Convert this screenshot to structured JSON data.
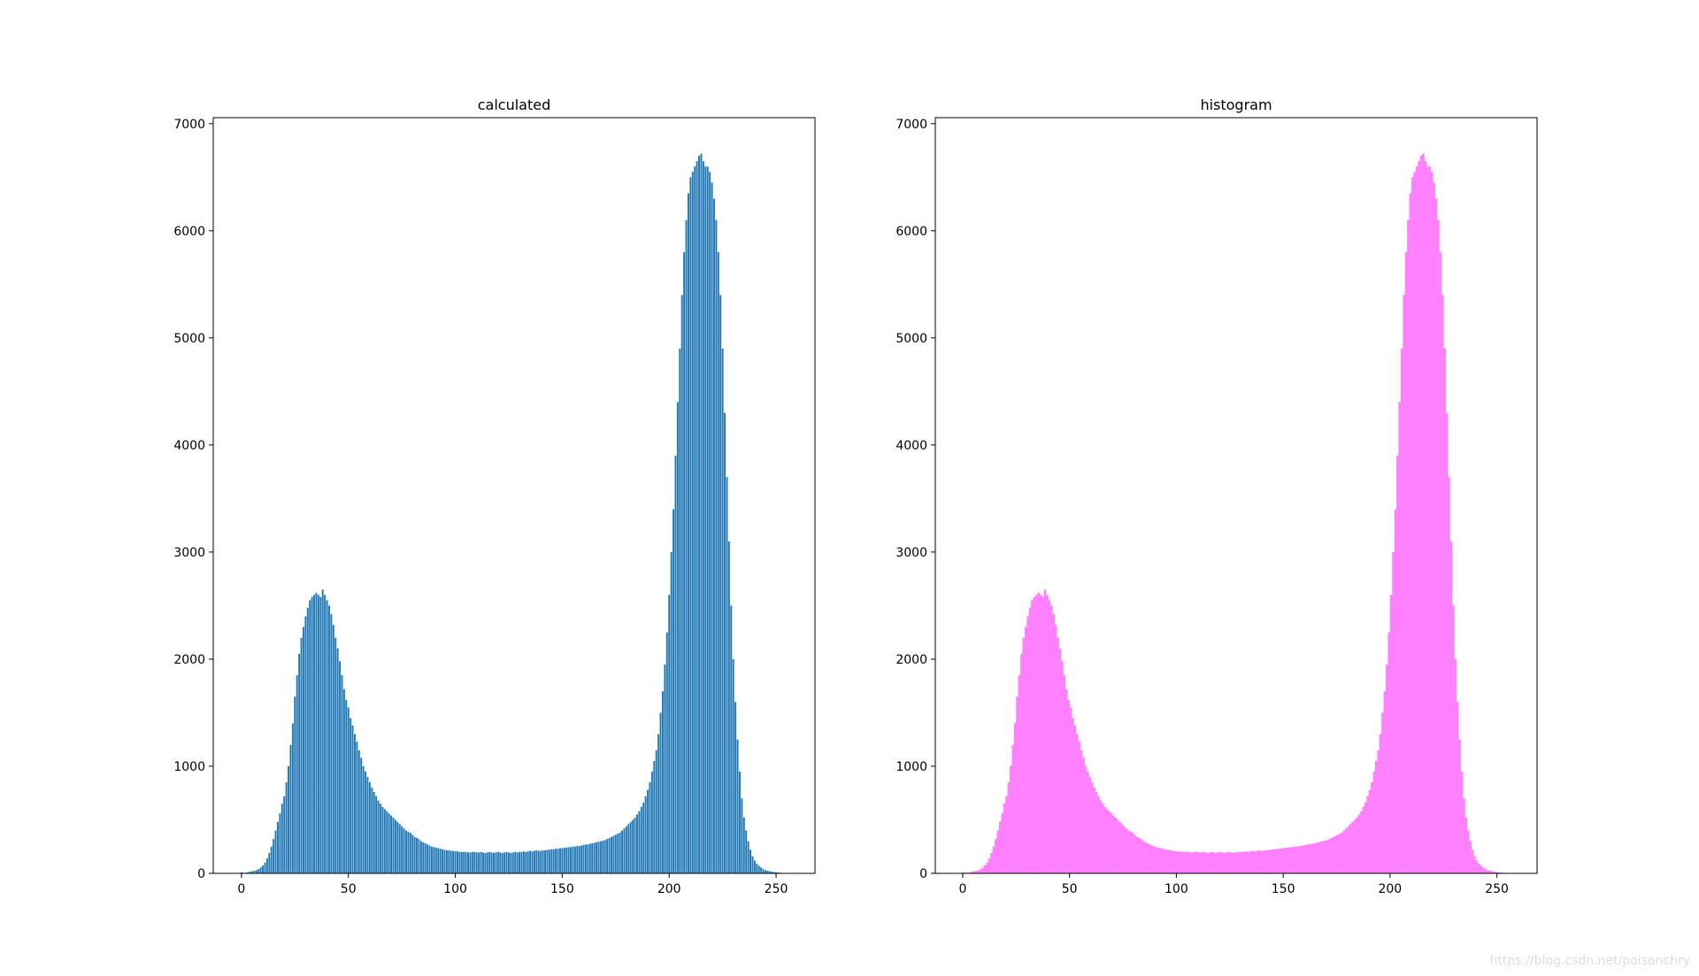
{
  "chart_data": [
    {
      "type": "bar",
      "title": "calculated",
      "color": "#1f77b4",
      "bar_width": 0.8,
      "x": [
        0,
        1,
        2,
        3,
        4,
        5,
        6,
        7,
        8,
        9,
        10,
        11,
        12,
        13,
        14,
        15,
        16,
        17,
        18,
        19,
        20,
        21,
        22,
        23,
        24,
        25,
        26,
        27,
        28,
        29,
        30,
        31,
        32,
        33,
        34,
        35,
        36,
        37,
        38,
        39,
        40,
        41,
        42,
        43,
        44,
        45,
        46,
        47,
        48,
        49,
        50,
        51,
        52,
        53,
        54,
        55,
        56,
        57,
        58,
        59,
        60,
        61,
        62,
        63,
        64,
        65,
        66,
        67,
        68,
        69,
        70,
        71,
        72,
        73,
        74,
        75,
        76,
        77,
        78,
        79,
        80,
        81,
        82,
        83,
        84,
        85,
        86,
        87,
        88,
        89,
        90,
        91,
        92,
        93,
        94,
        95,
        96,
        97,
        98,
        99,
        100,
        101,
        102,
        103,
        104,
        105,
        106,
        107,
        108,
        109,
        110,
        111,
        112,
        113,
        114,
        115,
        116,
        117,
        118,
        119,
        120,
        121,
        122,
        123,
        124,
        125,
        126,
        127,
        128,
        129,
        130,
        131,
        132,
        133,
        134,
        135,
        136,
        137,
        138,
        139,
        140,
        141,
        142,
        143,
        144,
        145,
        146,
        147,
        148,
        149,
        150,
        151,
        152,
        153,
        154,
        155,
        156,
        157,
        158,
        159,
        160,
        161,
        162,
        163,
        164,
        165,
        166,
        167,
        168,
        169,
        170,
        171,
        172,
        173,
        174,
        175,
        176,
        177,
        178,
        179,
        180,
        181,
        182,
        183,
        184,
        185,
        186,
        187,
        188,
        189,
        190,
        191,
        192,
        193,
        194,
        195,
        196,
        197,
        198,
        199,
        200,
        201,
        202,
        203,
        204,
        205,
        206,
        207,
        208,
        209,
        210,
        211,
        212,
        213,
        214,
        215,
        216,
        217,
        218,
        219,
        220,
        221,
        222,
        223,
        224,
        225,
        226,
        227,
        228,
        229,
        230,
        231,
        232,
        233,
        234,
        235,
        236,
        237,
        238,
        239,
        240,
        241,
        242,
        243,
        244,
        245,
        246,
        247,
        248,
        249,
        250,
        251,
        252,
        253,
        254,
        255
      ],
      "values": [
        10,
        5,
        5,
        10,
        15,
        20,
        25,
        30,
        40,
        55,
        75,
        100,
        140,
        190,
        250,
        320,
        400,
        480,
        560,
        650,
        720,
        850,
        1000,
        1200,
        1400,
        1650,
        1850,
        2050,
        2200,
        2300,
        2400,
        2480,
        2550,
        2580,
        2600,
        2620,
        2600,
        2580,
        2650,
        2600,
        2550,
        2500,
        2420,
        2320,
        2200,
        2100,
        1980,
        1850,
        1720,
        1620,
        1550,
        1450,
        1380,
        1300,
        1230,
        1150,
        1080,
        1000,
        950,
        900,
        850,
        800,
        760,
        720,
        680,
        650,
        620,
        600,
        580,
        560,
        540,
        520,
        500,
        480,
        460,
        440,
        420,
        400,
        390,
        380,
        360,
        340,
        330,
        320,
        300,
        290,
        280,
        270,
        260,
        250,
        245,
        240,
        235,
        230,
        225,
        220,
        215,
        215,
        210,
        210,
        205,
        205,
        200,
        200,
        200,
        200,
        195,
        195,
        200,
        200,
        195,
        195,
        200,
        195,
        190,
        195,
        200,
        195,
        190,
        195,
        200,
        195,
        190,
        195,
        200,
        195,
        190,
        195,
        200,
        195,
        200,
        200,
        205,
        200,
        205,
        210,
        205,
        210,
        215,
        210,
        210,
        215,
        215,
        220,
        220,
        225,
        225,
        230,
        230,
        235,
        235,
        240,
        240,
        245,
        245,
        250,
        250,
        255,
        255,
        260,
        265,
        270,
        270,
        275,
        280,
        285,
        290,
        295,
        300,
        305,
        310,
        320,
        330,
        340,
        350,
        360,
        370,
        380,
        400,
        420,
        440,
        460,
        480,
        500,
        520,
        550,
        580,
        620,
        660,
        720,
        780,
        850,
        950,
        1050,
        1150,
        1300,
        1500,
        1700,
        1950,
        2250,
        2600,
        3000,
        3400,
        3900,
        4400,
        4900,
        5400,
        5800,
        6100,
        6350,
        6500,
        6550,
        6600,
        6650,
        6700,
        6720,
        6650,
        6600,
        6600,
        6550,
        6450,
        6300,
        6100,
        5800,
        5400,
        4900,
        4300,
        3700,
        3100,
        2500,
        2000,
        1600,
        1250,
        950,
        700,
        520,
        400,
        300,
        220,
        160,
        120,
        90,
        70,
        55,
        40,
        30,
        25,
        20,
        15,
        12,
        10,
        8,
        6,
        4,
        3,
        2
      ],
      "xlim": [
        -13.19,
        268.19
      ],
      "xticks": [
        0,
        50,
        100,
        150,
        200,
        250
      ],
      "ylim": [
        0,
        7056
      ],
      "yticks": [
        0,
        1000,
        2000,
        3000,
        4000,
        5000,
        6000,
        7000
      ]
    },
    {
      "type": "histogram",
      "title": "histogram",
      "color": "#ff80ff",
      "bins": [
        0,
        1,
        2,
        3,
        4,
        5,
        6,
        7,
        8,
        9,
        10,
        11,
        12,
        13,
        14,
        15,
        16,
        17,
        18,
        19,
        20,
        21,
        22,
        23,
        24,
        25,
        26,
        27,
        28,
        29,
        30,
        31,
        32,
        33,
        34,
        35,
        36,
        37,
        38,
        39,
        40,
        41,
        42,
        43,
        44,
        45,
        46,
        47,
        48,
        49,
        50,
        51,
        52,
        53,
        54,
        55,
        56,
        57,
        58,
        59,
        60,
        61,
        62,
        63,
        64,
        65,
        66,
        67,
        68,
        69,
        70,
        71,
        72,
        73,
        74,
        75,
        76,
        77,
        78,
        79,
        80,
        81,
        82,
        83,
        84,
        85,
        86,
        87,
        88,
        89,
        90,
        91,
        92,
        93,
        94,
        95,
        96,
        97,
        98,
        99,
        100,
        101,
        102,
        103,
        104,
        105,
        106,
        107,
        108,
        109,
        110,
        111,
        112,
        113,
        114,
        115,
        116,
        117,
        118,
        119,
        120,
        121,
        122,
        123,
        124,
        125,
        126,
        127,
        128,
        129,
        130,
        131,
        132,
        133,
        134,
        135,
        136,
        137,
        138,
        139,
        140,
        141,
        142,
        143,
        144,
        145,
        146,
        147,
        148,
        149,
        150,
        151,
        152,
        153,
        154,
        155,
        156,
        157,
        158,
        159,
        160,
        161,
        162,
        163,
        164,
        165,
        166,
        167,
        168,
        169,
        170,
        171,
        172,
        173,
        174,
        175,
        176,
        177,
        178,
        179,
        180,
        181,
        182,
        183,
        184,
        185,
        186,
        187,
        188,
        189,
        190,
        191,
        192,
        193,
        194,
        195,
        196,
        197,
        198,
        199,
        200,
        201,
        202,
        203,
        204,
        205,
        206,
        207,
        208,
        209,
        210,
        211,
        212,
        213,
        214,
        215,
        216,
        217,
        218,
        219,
        220,
        221,
        222,
        223,
        224,
        225,
        226,
        227,
        228,
        229,
        230,
        231,
        232,
        233,
        234,
        235,
        236,
        237,
        238,
        239,
        240,
        241,
        242,
        243,
        244,
        245,
        246,
        247,
        248,
        249,
        250,
        251,
        252,
        253,
        254,
        255,
        256
      ],
      "values": [
        10,
        5,
        5,
        10,
        15,
        20,
        25,
        30,
        40,
        55,
        75,
        100,
        140,
        190,
        250,
        320,
        400,
        480,
        560,
        650,
        720,
        850,
        1000,
        1200,
        1400,
        1650,
        1850,
        2050,
        2200,
        2300,
        2400,
        2480,
        2550,
        2580,
        2600,
        2620,
        2600,
        2580,
        2650,
        2600,
        2550,
        2500,
        2420,
        2320,
        2200,
        2100,
        1980,
        1850,
        1720,
        1620,
        1550,
        1450,
        1380,
        1300,
        1230,
        1150,
        1080,
        1000,
        950,
        900,
        850,
        800,
        760,
        720,
        680,
        650,
        620,
        600,
        580,
        560,
        540,
        520,
        500,
        480,
        460,
        440,
        420,
        400,
        390,
        380,
        360,
        340,
        330,
        320,
        300,
        290,
        280,
        270,
        260,
        250,
        245,
        240,
        235,
        230,
        225,
        220,
        215,
        215,
        210,
        210,
        205,
        205,
        200,
        200,
        200,
        200,
        195,
        195,
        200,
        200,
        195,
        195,
        200,
        195,
        190,
        195,
        200,
        195,
        190,
        195,
        200,
        195,
        190,
        195,
        200,
        195,
        190,
        195,
        200,
        195,
        200,
        200,
        205,
        200,
        205,
        210,
        205,
        210,
        215,
        210,
        210,
        215,
        215,
        220,
        220,
        225,
        225,
        230,
        230,
        235,
        235,
        240,
        240,
        245,
        245,
        250,
        250,
        255,
        255,
        260,
        265,
        270,
        270,
        275,
        280,
        285,
        290,
        295,
        300,
        305,
        310,
        320,
        330,
        340,
        350,
        360,
        370,
        380,
        400,
        420,
        440,
        460,
        480,
        500,
        520,
        550,
        580,
        620,
        660,
        720,
        780,
        850,
        950,
        1050,
        1150,
        1300,
        1500,
        1700,
        1950,
        2250,
        2600,
        3000,
        3400,
        3900,
        4400,
        4900,
        5400,
        5800,
        6100,
        6350,
        6500,
        6550,
        6600,
        6650,
        6700,
        6720,
        6650,
        6600,
        6600,
        6550,
        6450,
        6300,
        6100,
        5800,
        5400,
        4900,
        4300,
        3700,
        3100,
        2500,
        2000,
        1600,
        1250,
        950,
        700,
        520,
        400,
        300,
        220,
        160,
        120,
        90,
        70,
        55,
        40,
        30,
        25,
        20,
        15,
        12,
        10,
        8,
        6,
        4,
        3,
        2
      ],
      "xlim": [
        -12.8,
        268.8
      ],
      "xticks": [
        0,
        50,
        100,
        150,
        200,
        250
      ],
      "ylim": [
        0,
        7056
      ],
      "yticks": [
        0,
        1000,
        2000,
        3000,
        4000,
        5000,
        6000,
        7000
      ]
    }
  ],
  "watermark": "https://blog.csdn.net/poisonchry"
}
